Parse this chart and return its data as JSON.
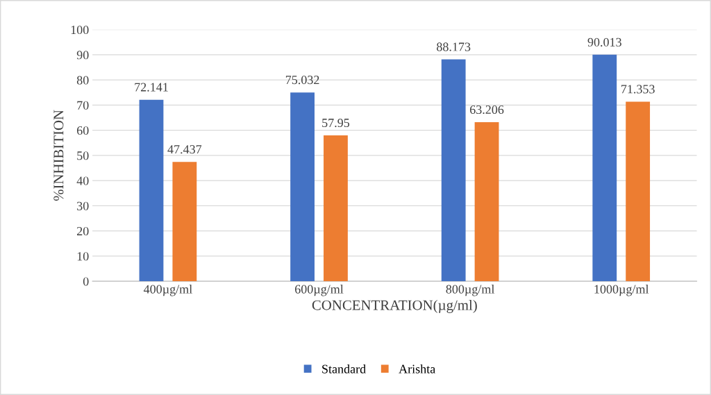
{
  "chart_data": {
    "type": "bar",
    "xlabel": "CONCENTRATION(µg/ml)",
    "ylabel": "%INHIBITION",
    "categories": [
      "400µg/ml",
      "600µg/ml",
      "800µg/ml",
      "1000µg/ml"
    ],
    "series": [
      {
        "name": "Standard",
        "color": "#4472c4",
        "values": [
          72.141,
          75.032,
          88.173,
          90.013
        ]
      },
      {
        "name": "Arishta",
        "color": "#ed7d31",
        "values": [
          47.437,
          57.95,
          63.206,
          71.353
        ]
      }
    ],
    "ylim": [
      0,
      100
    ],
    "yticks": [
      0,
      10,
      20,
      30,
      40,
      50,
      60,
      70,
      80,
      90,
      100
    ],
    "grid": "y",
    "legend": "bottom",
    "data_labels": true
  }
}
